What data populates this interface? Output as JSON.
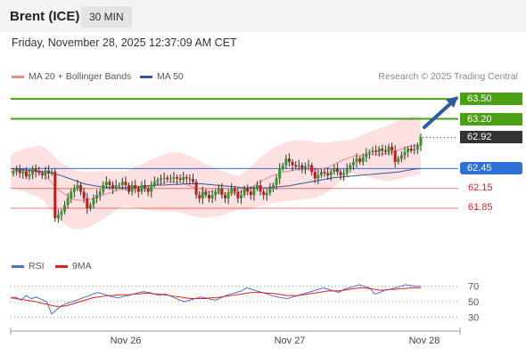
{
  "header": {
    "title": "Brent (ICE)",
    "timeframe": "30 MIN"
  },
  "datetime": "Friday, November 28, 2025 12:37:09 AM CET",
  "legend": [
    {
      "label": "MA 20 + Bollinger Bands",
      "color": "#f08a8a"
    },
    {
      "label": "MA 50",
      "color": "#2f5a9e"
    }
  ],
  "credit": "Research © 2025 Trading Central",
  "rsi_legend": [
    {
      "label": "RSI",
      "color": "#4a6fd0"
    },
    {
      "label": "9MA",
      "color": "#e02020"
    }
  ],
  "chart_data": [
    {
      "type": "candlestick",
      "x_ticks": [
        "Nov 26",
        "Nov 27",
        "Nov 28"
      ],
      "ylim": [
        61.3,
        63.65
      ],
      "levels": [
        {
          "value": 63.5,
          "label": "63.50",
          "kind": "resistance",
          "color": "#4aa012"
        },
        {
          "value": 63.2,
          "label": "63.20",
          "kind": "resistance",
          "color": "#4aa012"
        },
        {
          "value": 62.92,
          "label": "62.92",
          "kind": "last",
          "color": "#333333"
        },
        {
          "value": 62.45,
          "label": "62.45",
          "kind": "pivot",
          "color": "#2f6fd8"
        },
        {
          "value": 62.15,
          "label": "62.15",
          "kind": "support",
          "color": "#e02020"
        },
        {
          "value": 61.85,
          "label": "61.85",
          "kind": "support",
          "color": "#e02020"
        }
      ],
      "closes": [
        62.4,
        62.43,
        62.38,
        62.41,
        62.33,
        62.36,
        62.45,
        62.4,
        62.38,
        62.35,
        62.42,
        62.38,
        62.4,
        61.7,
        61.75,
        61.8,
        61.9,
        62.0,
        62.1,
        62.15,
        62.2,
        62.1,
        62.0,
        61.85,
        61.9,
        62.0,
        62.05,
        62.1,
        62.2,
        62.25,
        62.2,
        62.15,
        62.2,
        62.2,
        62.25,
        62.2,
        62.1,
        62.2,
        62.15,
        62.1,
        62.2,
        62.15,
        62.1,
        62.2,
        62.25,
        62.28,
        62.3,
        62.31,
        62.29,
        62.3,
        62.32,
        62.3,
        62.28,
        62.32,
        62.3,
        62.29,
        62.25,
        62.05,
        62.0,
        62.1,
        62.05,
        62.0,
        62.05,
        62.1,
        62.15,
        62.05,
        62.0,
        62.08,
        62.15,
        62.1,
        62.0,
        62.05,
        62.15,
        62.1,
        62.05,
        62.15,
        62.2,
        62.1,
        62.05,
        62.08,
        62.15,
        62.2,
        62.3,
        62.45,
        62.5,
        62.6,
        62.55,
        62.5,
        62.48,
        62.5,
        62.45,
        62.48,
        62.5,
        62.4,
        62.3,
        62.35,
        62.4,
        62.38,
        62.35,
        62.4,
        62.45,
        62.4,
        62.35,
        62.38,
        62.45,
        62.5,
        62.55,
        62.6,
        62.55,
        62.62,
        62.68,
        62.7,
        62.72,
        62.7,
        62.75,
        62.72,
        62.7,
        62.78,
        62.72,
        62.55,
        62.6,
        62.65,
        62.7,
        62.75,
        62.72,
        62.74,
        62.8,
        62.92
      ],
      "ma20": [
        62.4,
        62.42,
        62.42,
        62.43,
        62.42,
        62.41,
        62.41,
        62.4,
        62.38,
        62.32,
        62.25,
        62.18,
        62.12,
        62.08,
        62.04,
        62.0,
        61.98,
        61.97,
        61.97,
        61.98,
        61.99,
        62.01,
        62.03,
        62.05,
        62.07,
        62.09,
        62.11,
        62.13,
        62.14,
        62.15,
        62.16,
        62.17,
        62.17,
        62.18,
        62.19,
        62.2,
        62.21,
        62.22,
        62.23,
        62.24,
        62.25,
        62.25,
        62.24,
        62.22,
        62.2,
        62.18,
        62.16,
        62.14,
        62.12,
        62.11,
        62.1,
        62.09,
        62.08,
        62.08,
        62.08,
        62.08,
        62.08,
        62.09,
        62.11,
        62.14,
        62.17,
        62.21,
        62.25,
        62.28,
        62.31,
        62.34,
        62.36,
        62.38,
        62.4,
        62.41,
        62.42,
        62.43,
        62.43,
        62.43,
        62.43,
        62.43,
        62.43,
        62.44,
        62.45,
        62.47,
        62.5,
        62.53,
        62.56,
        62.59,
        62.61,
        62.63,
        62.64,
        62.65,
        62.65,
        62.66,
        62.66,
        62.66,
        62.67,
        62.67,
        62.68,
        62.7,
        62.72,
        62.74,
        62.76,
        62.78,
        62.79,
        62.8,
        62.8
      ],
      "ma50": [
        62.45,
        62.44,
        62.43,
        62.42,
        62.41,
        62.39,
        62.37,
        62.34,
        62.3,
        62.26,
        62.22,
        62.2,
        62.18,
        62.17,
        62.16,
        62.16,
        62.16,
        62.17,
        62.18,
        62.19,
        62.2,
        62.2,
        62.21,
        62.21,
        62.22,
        62.22,
        62.22,
        62.21,
        62.2,
        62.19,
        62.18,
        62.17,
        62.16,
        62.16,
        62.16,
        62.16,
        62.17,
        62.18,
        62.19,
        62.21,
        62.23,
        62.25,
        62.27,
        62.29,
        62.31,
        62.32,
        62.33,
        62.34,
        62.35,
        62.36,
        62.37,
        62.38,
        62.39,
        62.4,
        62.42,
        62.44,
        62.45
      ]
    },
    {
      "type": "line",
      "name": "RSI",
      "ylim": [
        20,
        80
      ],
      "y_ticks": [
        70,
        50,
        30
      ],
      "series": [
        {
          "name": "RSI",
          "values": [
            55,
            56,
            52,
            58,
            54,
            56,
            53,
            50,
            34,
            40,
            45,
            48,
            50,
            52,
            55,
            57,
            60,
            62,
            60,
            58,
            56,
            55,
            57,
            58,
            60,
            62,
            63,
            62,
            60,
            58,
            60,
            58,
            55,
            52,
            50,
            52,
            54,
            56,
            55,
            53,
            52,
            55,
            58,
            60,
            62,
            64,
            68,
            66,
            64,
            62,
            60,
            58,
            56,
            55,
            54,
            56,
            58,
            60,
            62,
            64,
            66,
            68,
            66,
            64,
            62,
            66,
            68,
            70,
            72,
            70,
            68,
            60,
            62,
            65,
            66,
            68,
            70,
            72,
            71,
            70,
            70
          ]
        },
        {
          "name": "9MA",
          "values": [
            55,
            54,
            53,
            52,
            51,
            50,
            48,
            47,
            45,
            44,
            44,
            45,
            47,
            49,
            51,
            53,
            55,
            56,
            57,
            58,
            58,
            59,
            59,
            59,
            60,
            60,
            61,
            61,
            60,
            60,
            59,
            58,
            57,
            56,
            55,
            54,
            54,
            54,
            54,
            55,
            55,
            56,
            57,
            58,
            59,
            60,
            61,
            62,
            62,
            62,
            61,
            61,
            60,
            59,
            58,
            58,
            58,
            59,
            60,
            61,
            62,
            63,
            64,
            64,
            64,
            65,
            66,
            67,
            68,
            68,
            67,
            66,
            65,
            65,
            66,
            66,
            67,
            67,
            68,
            68,
            68
          ]
        }
      ]
    }
  ]
}
